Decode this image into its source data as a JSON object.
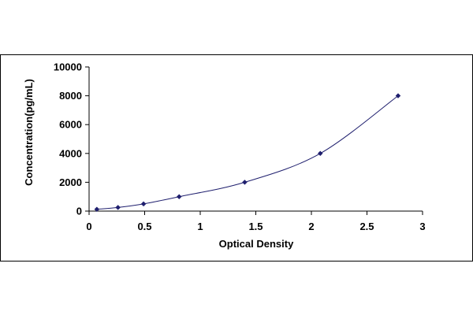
{
  "chart_data": {
    "type": "scatter",
    "title": "",
    "xlabel": "Optical Density",
    "ylabel": "Concentration(pg/mL)",
    "xlim": [
      0,
      3
    ],
    "ylim": [
      0,
      10000
    ],
    "x_ticks": [
      "0",
      "0.5",
      "1",
      "1.5",
      "2",
      "2.5",
      "3"
    ],
    "y_ticks": [
      "0",
      "2000",
      "4000",
      "6000",
      "8000",
      "10000"
    ],
    "grid": false,
    "legend": "none",
    "trendline": "smooth curve through points",
    "colors": {
      "series": "#1F1F6E",
      "line": "#1F1F6E",
      "axis": "#000000",
      "frame": "#000000"
    },
    "series": [
      {
        "x": [
          0.07,
          0.26,
          0.49,
          0.81,
          1.4,
          2.08,
          2.78
        ],
        "y": [
          125,
          250,
          500,
          1000,
          2000,
          4000,
          8000
        ]
      }
    ]
  }
}
